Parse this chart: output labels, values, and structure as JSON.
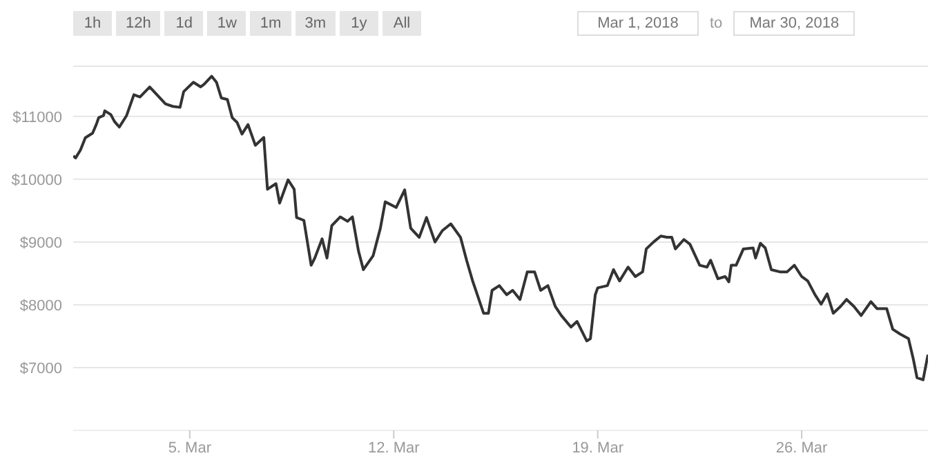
{
  "chart_data": {
    "type": "line",
    "annotations": [
      "1h",
      "12h",
      "1d",
      "1w",
      "1m",
      "3m",
      "1y",
      "All",
      "Mar 1, 2018",
      "to",
      "Mar 30, 2018"
    ],
    "x": [
      "2018-03-01T00:00",
      "2018-03-01T02:00",
      "2018-03-01T06:00",
      "2018-03-01T10:00",
      "2018-03-01T16:00",
      "2018-03-01T19:00",
      "2018-03-01T21:00",
      "2018-03-02T01:00",
      "2018-03-02T02:00",
      "2018-03-02T07:00",
      "2018-03-02T10:00",
      "2018-03-02T14:00",
      "2018-03-02T20:00",
      "2018-03-03T02:00",
      "2018-03-03T07:00",
      "2018-03-03T15:00",
      "2018-03-03T21:00",
      "2018-03-04T04:00",
      "2018-03-04T10:00",
      "2018-03-04T16:00",
      "2018-03-04T19:00",
      "2018-03-05T03:00",
      "2018-03-05T09:00",
      "2018-03-05T12:00",
      "2018-03-05T18:00",
      "2018-03-05T22:00",
      "2018-03-06T02:00",
      "2018-03-06T07:00",
      "2018-03-06T11:00",
      "2018-03-06T15:00",
      "2018-03-06T19:00",
      "2018-03-07T00:00",
      "2018-03-07T06:00",
      "2018-03-07T13:00",
      "2018-03-07T16:00",
      "2018-03-07T23:00",
      "2018-03-08T02:00",
      "2018-03-08T09:00",
      "2018-03-08T14:00",
      "2018-03-08T16:00",
      "2018-03-08T22:00",
      "2018-03-09T04:00",
      "2018-03-09T07:00",
      "2018-03-09T13:00",
      "2018-03-09T17:00",
      "2018-03-09T21:00",
      "2018-03-10T04:00",
      "2018-03-10T10:00",
      "2018-03-10T14:00",
      "2018-03-10T19:00",
      "2018-03-10T23:00",
      "2018-03-11T07:00",
      "2018-03-11T13:00",
      "2018-03-11T17:00",
      "2018-03-12T02:00",
      "2018-03-12T09:00",
      "2018-03-12T14:00",
      "2018-03-12T21:00",
      "2018-03-13T03:00",
      "2018-03-13T10:00",
      "2018-03-13T16:00",
      "2018-03-13T23:00",
      "2018-03-14T07:00",
      "2018-03-14T12:00",
      "2018-03-14T17:00",
      "2018-03-15T02:00",
      "2018-03-15T06:00",
      "2018-03-15T09:00",
      "2018-03-15T15:00",
      "2018-03-15T21:00",
      "2018-03-16T02:00",
      "2018-03-16T08:00",
      "2018-03-16T14:00",
      "2018-03-16T20:00",
      "2018-03-17T01:00",
      "2018-03-17T07:00",
      "2018-03-17T13:00",
      "2018-03-17T18:00",
      "2018-03-18T02:00",
      "2018-03-18T07:00",
      "2018-03-18T15:00",
      "2018-03-18T18:00",
      "2018-03-18T22:00",
      "2018-03-19T00:00",
      "2018-03-19T08:00",
      "2018-03-19T13:00",
      "2018-03-19T18:00",
      "2018-03-20T01:00",
      "2018-03-20T07:00",
      "2018-03-20T13:00",
      "2018-03-20T16:00",
      "2018-03-20T22:00",
      "2018-03-21T04:00",
      "2018-03-21T09:00",
      "2018-03-21T13:00",
      "2018-03-21T16:00",
      "2018-03-21T23:00",
      "2018-03-22T04:00",
      "2018-03-22T12:00",
      "2018-03-22T18:00",
      "2018-03-22T21:00",
      "2018-03-23T03:00",
      "2018-03-23T09:00",
      "2018-03-23T12:00",
      "2018-03-23T14:00",
      "2018-03-23T18:00",
      "2018-03-24T00:00",
      "2018-03-24T08:00",
      "2018-03-24T10:00",
      "2018-03-24T14:00",
      "2018-03-24T18:00",
      "2018-03-24T23:00",
      "2018-03-25T06:00",
      "2018-03-25T12:00",
      "2018-03-25T18:00",
      "2018-03-26T00:00",
      "2018-03-26T05:00",
      "2018-03-26T11:00",
      "2018-03-26T16:00",
      "2018-03-26T21:00",
      "2018-03-27T02:00",
      "2018-03-27T08:00",
      "2018-03-27T13:00",
      "2018-03-27T19:00",
      "2018-03-28T01:00",
      "2018-03-28T09:00",
      "2018-03-28T14:00",
      "2018-03-28T22:00",
      "2018-03-29T03:00",
      "2018-03-29T09:00",
      "2018-03-29T16:00",
      "2018-03-29T20:00",
      "2018-03-29T23:00",
      "2018-03-30T04:00",
      "2018-03-30T08:00"
    ],
    "values": [
      10370,
      10340,
      10465,
      10660,
      10735,
      10870,
      10980,
      11015,
      11090,
      11030,
      10920,
      10830,
      11015,
      11345,
      11310,
      11470,
      11345,
      11200,
      11160,
      11145,
      11395,
      11545,
      11470,
      11515,
      11640,
      11545,
      11295,
      11270,
      10980,
      10905,
      10720,
      10870,
      10540,
      10665,
      9840,
      9930,
      9620,
      9990,
      9840,
      9390,
      9345,
      8630,
      8745,
      9050,
      8745,
      9260,
      9400,
      9330,
      9400,
      8855,
      8560,
      8780,
      9220,
      9640,
      9550,
      9830,
      9220,
      9075,
      9390,
      9000,
      9180,
      9290,
      9075,
      8710,
      8380,
      7865,
      7865,
      8230,
      8305,
      8160,
      8230,
      8085,
      8525,
      8525,
      8230,
      8305,
      7975,
      7830,
      7645,
      7735,
      7425,
      7460,
      8160,
      8270,
      8305,
      8560,
      8380,
      8600,
      8450,
      8525,
      8890,
      9000,
      9095,
      9075,
      9075,
      8890,
      9040,
      8965,
      8630,
      8600,
      8710,
      8415,
      8450,
      8365,
      8630,
      8630,
      8890,
      8905,
      8745,
      8980,
      8905,
      8560,
      8525,
      8525,
      8630,
      8450,
      8380,
      8160,
      8010,
      8175,
      7865,
      7975,
      8085,
      7975,
      7830,
      8050,
      7940,
      7940,
      7610,
      7535,
      7460,
      7130,
      6840,
      6805,
      7205
    ],
    "color": "#333333",
    "xlim": [
      "2018-03-01",
      "2018-03-30T08:00"
    ],
    "xticks": [
      {
        "value": "2018-03-05",
        "label": "5. Mar"
      },
      {
        "value": "2018-03-12",
        "label": "12. Mar"
      },
      {
        "value": "2018-03-19",
        "label": "19. Mar"
      },
      {
        "value": "2018-03-26",
        "label": "26. Mar"
      }
    ],
    "ylim": [
      6000,
      11800
    ],
    "yticks": [
      {
        "value": 7000,
        "label": "$7000"
      },
      {
        "value": 8000,
        "label": "$8000"
      },
      {
        "value": 9000,
        "label": "$9000"
      },
      {
        "value": 10000,
        "label": "$10000"
      },
      {
        "value": 11000,
        "label": "$11000"
      }
    ],
    "grid": "y"
  }
}
